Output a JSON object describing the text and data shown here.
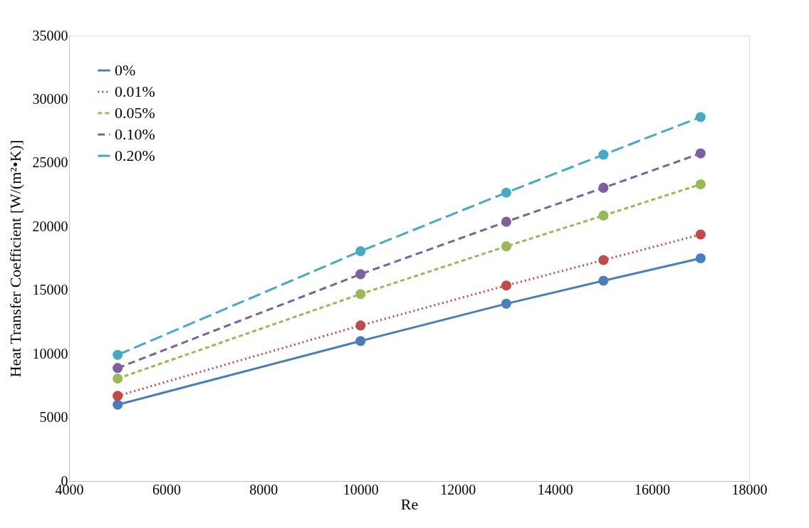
{
  "chart_data": {
    "type": "line",
    "xlabel": "Re",
    "ylabel": "Heat Transfer Coefficient [W/(m²•K)]",
    "x": [
      5000,
      10000,
      13000,
      15000,
      17000
    ],
    "series": [
      {
        "name": "0%",
        "color": "#4a7ebb",
        "line_style": "solid",
        "values": [
          6000,
          11000,
          13930,
          15740,
          17500
        ]
      },
      {
        "name": "0.01%",
        "color": "#be4b48",
        "line_style": "dotted",
        "values": [
          6690,
          12220,
          15360,
          17360,
          19370
        ]
      },
      {
        "name": "0.05%",
        "color": "#98b954",
        "line_style": "dashed",
        "values": [
          8050,
          14690,
          18440,
          20860,
          23310
        ]
      },
      {
        "name": "0.10%",
        "color": "#7d60a0",
        "line_style": "dashed",
        "values": [
          8880,
          16250,
          20370,
          23040,
          25740
        ]
      },
      {
        "name": "0.20%",
        "color": "#46aac5",
        "line_style": "dashed",
        "values": [
          9910,
          18060,
          22660,
          25640,
          28600
        ]
      }
    ],
    "xlim": [
      4000,
      18000
    ],
    "xticks": [
      4000,
      6000,
      8000,
      10000,
      12000,
      14000,
      16000,
      18000
    ],
    "ylim": [
      0,
      35000
    ],
    "yticks": [
      0,
      5000,
      10000,
      15000,
      20000,
      25000,
      30000,
      35000
    ],
    "grid": false,
    "legend": "top left",
    "marker": "circle"
  }
}
